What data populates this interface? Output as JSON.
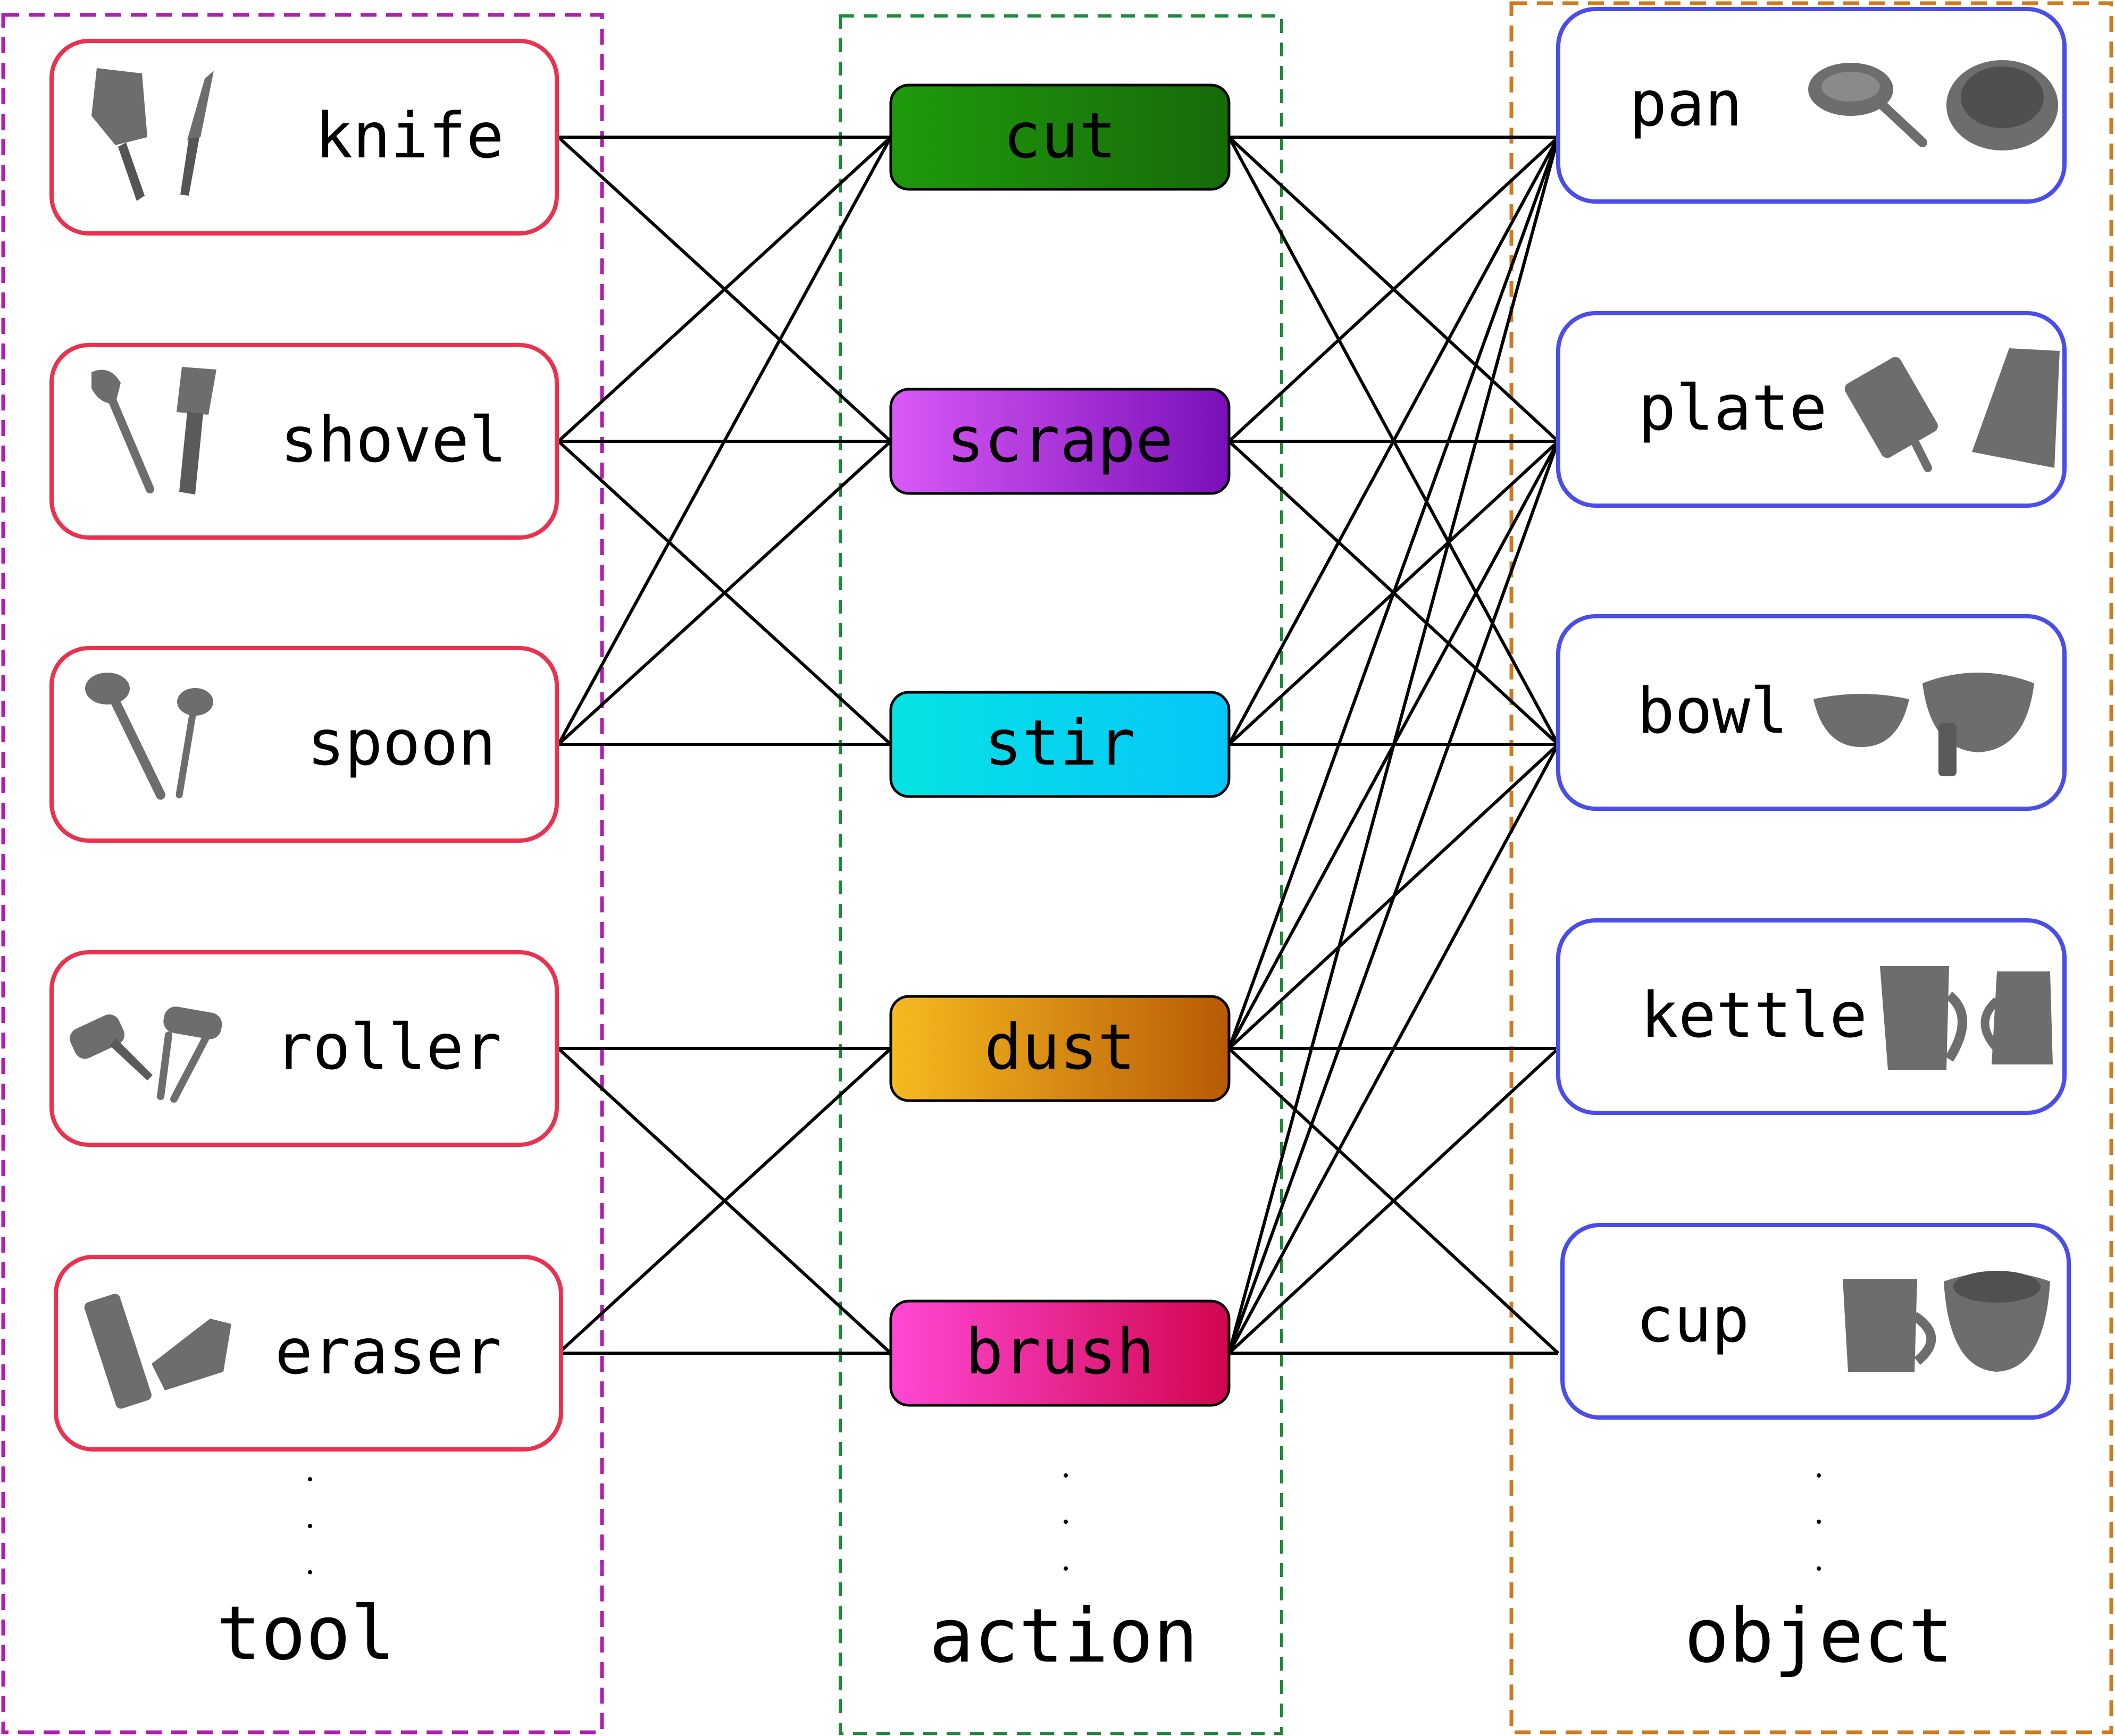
{
  "colors": {
    "tool_border": "#e8324f",
    "object_border": "#4a4de8",
    "tool_group": "#b01db0",
    "action_group": "#1e8a3c",
    "object_group": "#d07a1e",
    "icon_gray": "#6d6d6d",
    "edge": "#000000"
  },
  "columns": {
    "tool": "tool",
    "action": "action",
    "object": "object"
  },
  "tools": [
    {
      "id": "knife",
      "label": "knife",
      "icons": [
        "cleaver-icon",
        "chef-knife-icon"
      ]
    },
    {
      "id": "shovel",
      "label": "shovel",
      "icons": [
        "slotted-spatula-icon",
        "flat-spatula-icon"
      ]
    },
    {
      "id": "spoon",
      "label": "spoon",
      "icons": [
        "ladle-icon",
        "small-ladle-icon"
      ]
    },
    {
      "id": "roller",
      "label": "roller",
      "icons": [
        "lint-roller-icon",
        "paint-roller-icon"
      ]
    },
    {
      "id": "eraser",
      "label": "eraser",
      "icons": [
        "board-eraser-icon",
        "block-eraser-icon"
      ]
    }
  ],
  "actions": [
    {
      "id": "cut",
      "label": "cut",
      "gradient": [
        "#1f9a0c",
        "#176b0a"
      ]
    },
    {
      "id": "scrape",
      "label": "scrape",
      "gradient": [
        "#d95af7",
        "#7a0fb8"
      ]
    },
    {
      "id": "stir",
      "label": "stir",
      "gradient": [
        "#05e3e3",
        "#06c6f9"
      ]
    },
    {
      "id": "dust",
      "label": "dust",
      "gradient": [
        "#f6bb20",
        "#b85a06"
      ]
    },
    {
      "id": "brush",
      "label": "brush",
      "gradient": [
        "#ff48d6",
        "#d2064e"
      ]
    }
  ],
  "objects": [
    {
      "id": "pan",
      "label": "pan",
      "icons": [
        "saucepan-icon",
        "pot-icon"
      ]
    },
    {
      "id": "plate",
      "label": "plate",
      "icons": [
        "cutting-board-icon",
        "tray-icon"
      ]
    },
    {
      "id": "bowl",
      "label": "bowl",
      "icons": [
        "shallow-bowl-icon",
        "deep-bowl-icon"
      ]
    },
    {
      "id": "kettle",
      "label": "kettle",
      "icons": [
        "kettle-icon",
        "pitcher-icon"
      ]
    },
    {
      "id": "cup",
      "label": "cup",
      "icons": [
        "mug-icon",
        "measuring-cup-icon"
      ]
    }
  ],
  "tool_action_edges": [
    [
      "knife",
      "cut"
    ],
    [
      "knife",
      "scrape"
    ],
    [
      "shovel",
      "cut"
    ],
    [
      "shovel",
      "scrape"
    ],
    [
      "shovel",
      "stir"
    ],
    [
      "spoon",
      "cut"
    ],
    [
      "spoon",
      "scrape"
    ],
    [
      "spoon",
      "stir"
    ],
    [
      "roller",
      "dust"
    ],
    [
      "roller",
      "brush"
    ],
    [
      "eraser",
      "dust"
    ],
    [
      "eraser",
      "brush"
    ]
  ],
  "action_object_edges": [
    [
      "cut",
      "pan"
    ],
    [
      "cut",
      "plate"
    ],
    [
      "cut",
      "bowl"
    ],
    [
      "scrape",
      "pan"
    ],
    [
      "scrape",
      "plate"
    ],
    [
      "scrape",
      "bowl"
    ],
    [
      "stir",
      "pan"
    ],
    [
      "stir",
      "plate"
    ],
    [
      "stir",
      "bowl"
    ],
    [
      "dust",
      "pan"
    ],
    [
      "dust",
      "plate"
    ],
    [
      "dust",
      "bowl"
    ],
    [
      "dust",
      "kettle"
    ],
    [
      "dust",
      "cup"
    ],
    [
      "brush",
      "pan"
    ],
    [
      "brush",
      "plate"
    ],
    [
      "brush",
      "bowl"
    ],
    [
      "brush",
      "kettle"
    ],
    [
      "brush",
      "cup"
    ]
  ]
}
